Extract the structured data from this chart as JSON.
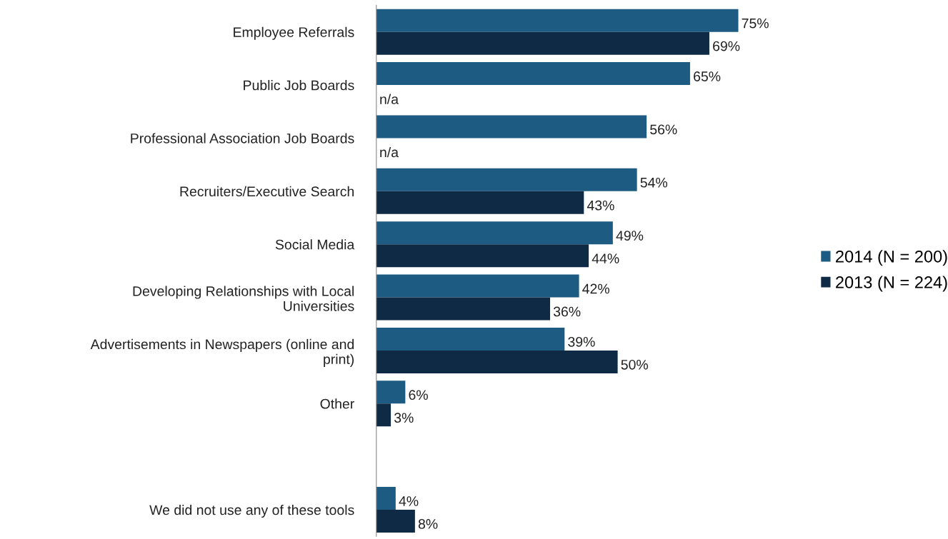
{
  "chart_data": {
    "type": "bar",
    "orientation": "horizontal",
    "categories": [
      "Employee Referrals",
      "Public Job Boards",
      "Professional Association Job Boards",
      "Recruiters/Executive Search",
      "Social Media",
      "Developing Relationships with Local\nUniversities",
      "Advertisements in Newspapers (online and\nprint)",
      "Other",
      null,
      "We did not use any of these tools"
    ],
    "series": [
      {
        "name": "2014 (N = 200)",
        "color": "#1d5b82",
        "values": [
          75,
          65,
          56,
          54,
          49,
          42,
          39,
          6,
          null,
          4
        ],
        "value_labels": [
          "75%",
          "65%",
          "56%",
          "54%",
          "49%",
          "42%",
          "39%",
          "6%",
          null,
          "4%"
        ]
      },
      {
        "name": "2013 (N = 224)",
        "color": "#0e2a44",
        "values": [
          69,
          null,
          null,
          43,
          44,
          36,
          50,
          3,
          null,
          8
        ],
        "value_labels": [
          "69%",
          "n/a",
          "n/a",
          "43%",
          "44%",
          "36%",
          "50%",
          "3%",
          null,
          "8%"
        ]
      }
    ],
    "relative": false,
    "legend": "right",
    "grid": false
  }
}
